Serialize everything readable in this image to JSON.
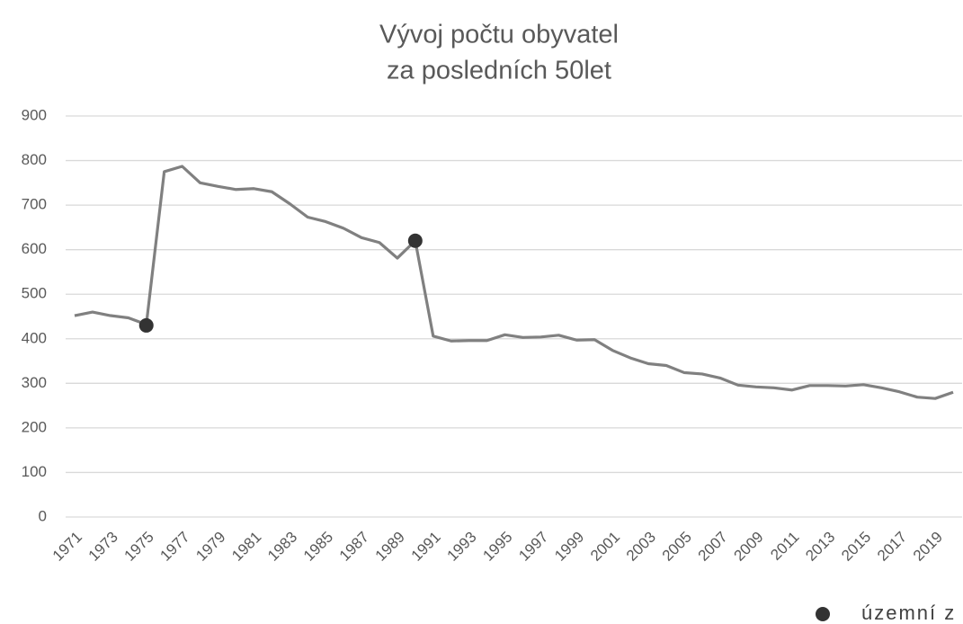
{
  "chart_data": {
    "type": "line",
    "title": [
      "Vývoj počtu obyvatel",
      "za posledních 50let"
    ],
    "categories": [
      "1971",
      null,
      "1973",
      null,
      "1975",
      null,
      "1977",
      null,
      "1979",
      null,
      "1981",
      null,
      "1983",
      null,
      "1985",
      null,
      "1987",
      null,
      "1989",
      null,
      "1991",
      null,
      "1993",
      null,
      "1995",
      null,
      "1997",
      null,
      "1999",
      null,
      "2001",
      null,
      "2003",
      null,
      "2005",
      null,
      "2007",
      null,
      "2009",
      null,
      "2011",
      null,
      "2013",
      null,
      "2015",
      null,
      "2017",
      null,
      "2019",
      null
    ],
    "series": [
      {
        "color": "#808080",
        "values": [
          452,
          460,
          452,
          447,
          432,
          775,
          787,
          750,
          742,
          735,
          737,
          730,
          703,
          673,
          663,
          648,
          627,
          616,
          581,
          620,
          406,
          395,
          396,
          396,
          409,
          403,
          404,
          408,
          397,
          398,
          374,
          357,
          344,
          340,
          324,
          321,
          312,
          296,
          292,
          290,
          285,
          295,
          295,
          294,
          297,
          290,
          281,
          269,
          266,
          280
        ]
      },
      {
        "name": "územní z",
        "color": "#333333",
        "marker": "circle",
        "values": [
          null,
          null,
          null,
          null,
          430,
          null,
          null,
          null,
          null,
          null,
          null,
          null,
          null,
          null,
          null,
          null,
          null,
          null,
          null,
          620,
          null,
          null,
          null,
          null,
          null,
          null,
          null,
          null,
          null,
          null,
          null,
          null,
          null,
          null,
          null,
          null,
          null,
          null,
          null,
          null,
          null,
          null,
          null,
          null,
          null,
          null,
          null,
          null,
          null,
          null
        ]
      }
    ],
    "ylim": [
      0,
      900
    ],
    "yticks": [
      0,
      100,
      200,
      300,
      400,
      500,
      600,
      700,
      800,
      900
    ],
    "grid": true,
    "legend": "bottom-right"
  }
}
